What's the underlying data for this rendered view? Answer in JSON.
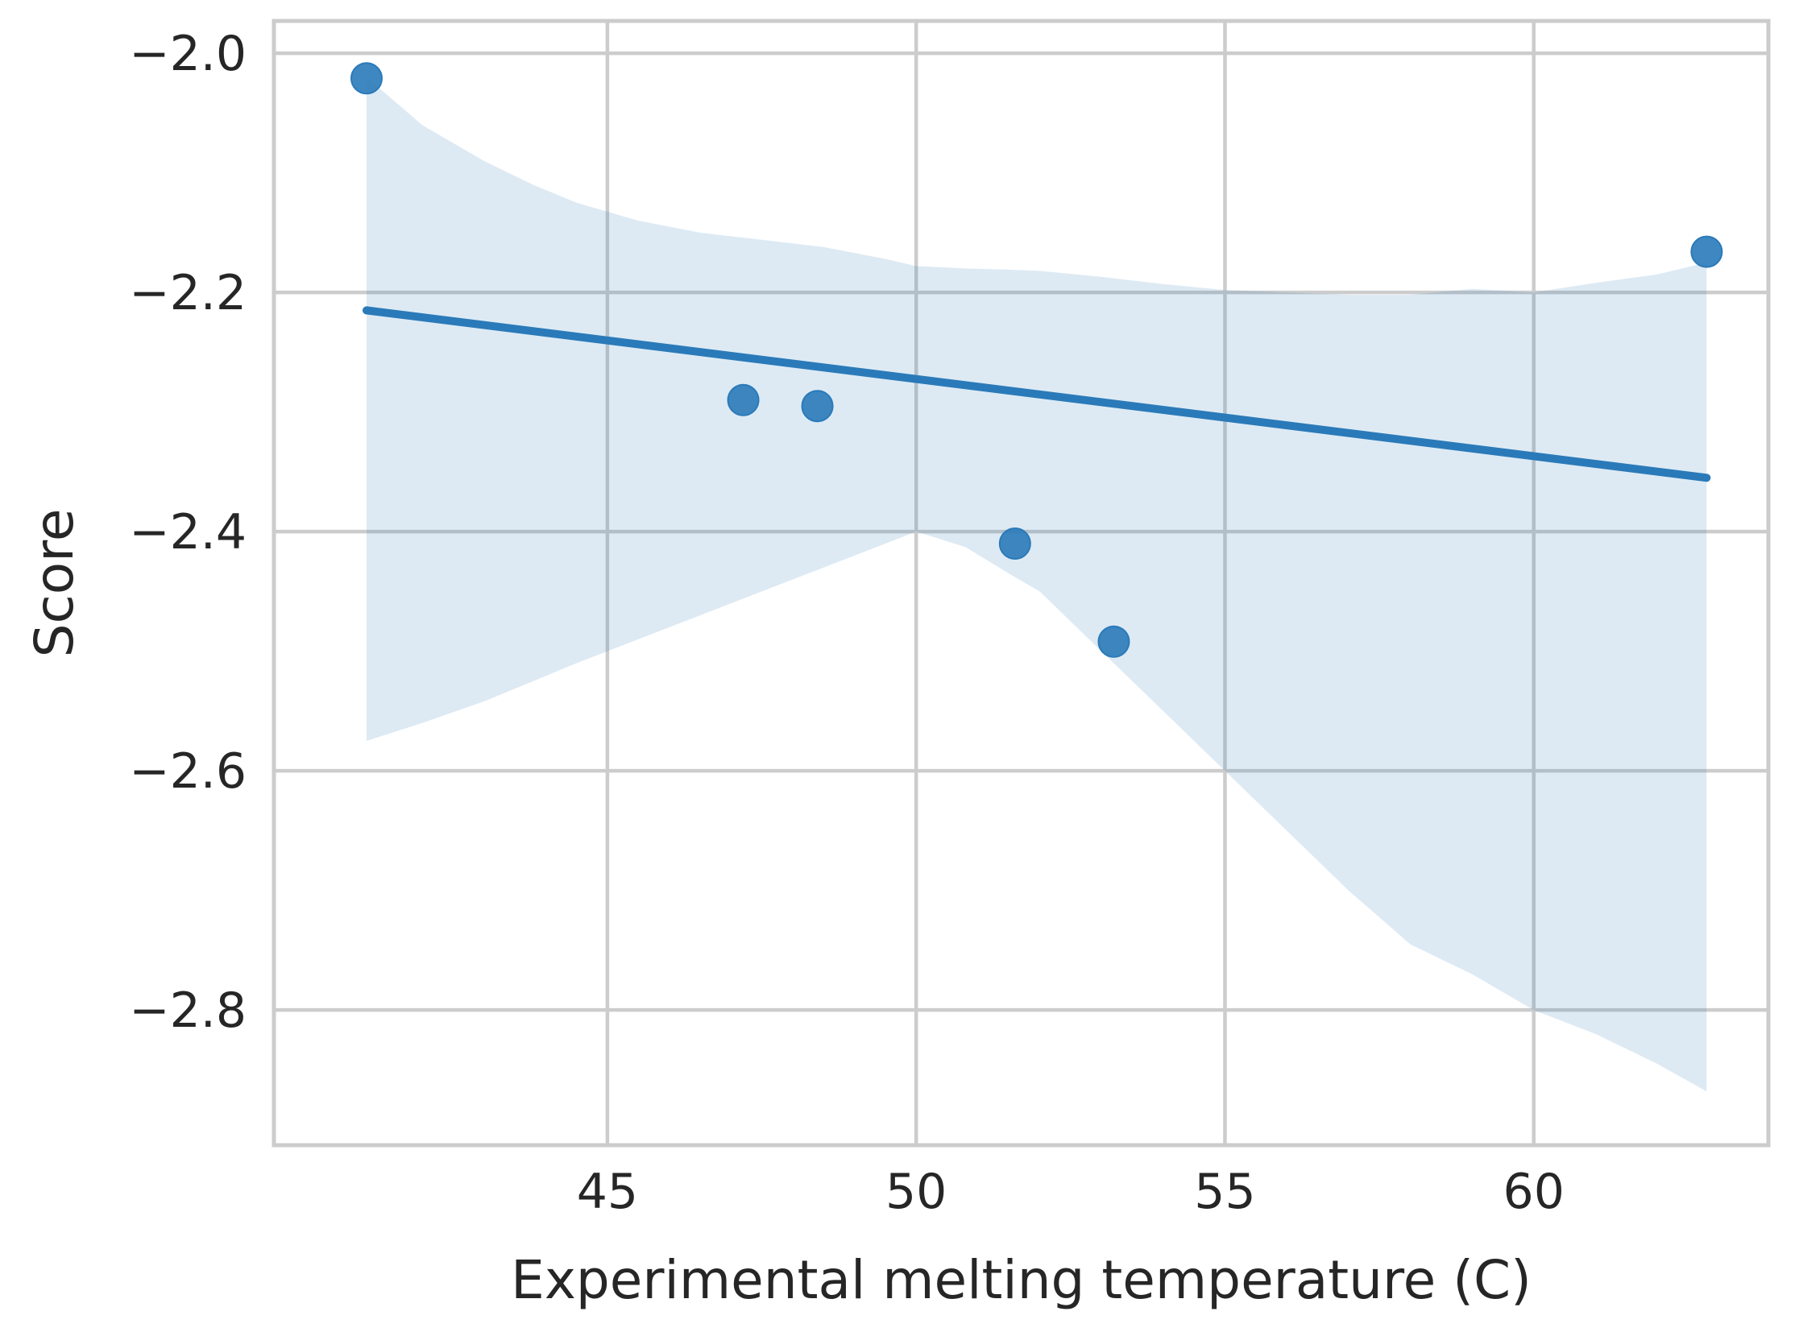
{
  "chart_data": {
    "type": "scatter",
    "title": "",
    "xlabel": "Experimental melting temperature (C)",
    "ylabel": "Score",
    "xlim": [
      39.6,
      63.8
    ],
    "ylim": [
      -2.913,
      -1.973
    ],
    "xticks": [
      45,
      50,
      55,
      60
    ],
    "xtick_labels": [
      "45",
      "50",
      "55",
      "60"
    ],
    "yticks": [
      -2.0,
      -2.2,
      -2.4,
      -2.6,
      -2.8
    ],
    "ytick_labels": [
      "−2.0",
      "−2.2",
      "−2.4",
      "−2.6",
      "−2.8"
    ],
    "grid": true,
    "series": [
      {
        "kind": "scatter",
        "color": "#2a7ab9",
        "x": [
          41.1,
          47.2,
          48.4,
          51.6,
          53.2,
          62.8
        ],
        "y": [
          -2.021,
          -2.29,
          -2.295,
          -2.41,
          -2.492,
          -2.166
        ]
      }
    ],
    "regression_line": {
      "color": "#2a7ab9",
      "x": [
        41.1,
        62.8
      ],
      "y": [
        -2.215,
        -2.355
      ]
    },
    "confidence_band": {
      "color": "#2a7ab9",
      "opacity": 0.16,
      "x": [
        41.1,
        42.0,
        43.0,
        43.8,
        44.5,
        45.5,
        46.5,
        47.5,
        48.5,
        49.5,
        50.0,
        50.8,
        51.5,
        52.0,
        53.0,
        54.0,
        55.0,
        56.0,
        57.0,
        58.0,
        59.0,
        60.0,
        61.0,
        62.0,
        62.8
      ],
      "upper": [
        -2.02,
        -2.06,
        -2.09,
        -2.11,
        -2.125,
        -2.14,
        -2.15,
        -2.156,
        -2.162,
        -2.172,
        -2.178,
        -2.18,
        -2.181,
        -2.182,
        -2.187,
        -2.193,
        -2.198,
        -2.2,
        -2.202,
        -2.202,
        -2.197,
        -2.2,
        -2.192,
        -2.185,
        -2.175
      ],
      "lower": [
        -2.575,
        -2.56,
        -2.542,
        -2.525,
        -2.51,
        -2.49,
        -2.47,
        -2.45,
        -2.43,
        -2.41,
        -2.4,
        -2.413,
        -2.435,
        -2.45,
        -2.5,
        -2.55,
        -2.6,
        -2.65,
        -2.7,
        -2.745,
        -2.77,
        -2.8,
        -2.82,
        -2.845,
        -2.868
      ]
    }
  }
}
